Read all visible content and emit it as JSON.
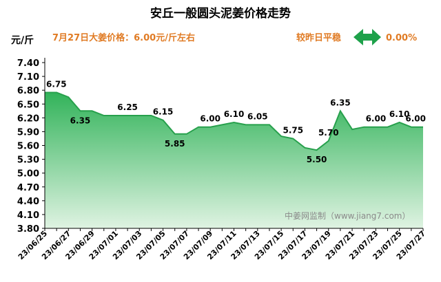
{
  "header": {
    "title": "安丘一般圆头泥姜价格走势",
    "unit": "元/斤",
    "price_text": "7月27日大姜价格：6.00元/斤左右",
    "compare_text": "较昨日平稳",
    "change_text": "0.00%"
  },
  "watermark": "中姜网监制（www.jiang7.com）",
  "colors": {
    "fill_top": "#32b35a",
    "fill_bottom": "#dff3e2",
    "line": "#27a04c",
    "accent_orange": "#e07b24",
    "arrow_green": "#1ea14a"
  },
  "chart_data": {
    "type": "area",
    "title": "安丘一般圆头泥姜价格走势",
    "ylabel": "元/斤",
    "ylim": [
      3.8,
      7.4
    ],
    "yticks": [
      "7.40",
      "7.10",
      "6.80",
      "6.50",
      "6.20",
      "5.90",
      "5.60",
      "5.30",
      "5.00",
      "4.70",
      "4.40",
      "4.10",
      "3.80"
    ],
    "x": [
      "23/06/25",
      "23/06/26",
      "23/06/27",
      "23/06/28",
      "23/06/29",
      "23/06/30",
      "23/07/01",
      "23/07/02",
      "23/07/03",
      "23/07/04",
      "23/07/05",
      "23/07/06",
      "23/07/07",
      "23/07/08",
      "23/07/09",
      "23/07/10",
      "23/07/11",
      "23/07/12",
      "23/07/13",
      "23/07/14",
      "23/07/15",
      "23/07/16",
      "23/07/17",
      "23/07/18",
      "23/07/19",
      "23/07/20",
      "23/07/21",
      "23/07/22",
      "23/07/23",
      "23/07/24",
      "23/07/25",
      "23/07/26",
      "23/07/27"
    ],
    "xticks": [
      "23/06/25",
      "23/06/27",
      "23/06/29",
      "23/07/01",
      "23/07/03",
      "23/07/05",
      "23/07/07",
      "23/07/09",
      "23/07/11",
      "23/07/13",
      "23/07/15",
      "23/07/17",
      "23/07/19",
      "23/07/21",
      "23/07/23",
      "23/07/25",
      "23/07/27"
    ],
    "values": [
      6.75,
      6.75,
      6.65,
      6.35,
      6.35,
      6.25,
      6.25,
      6.25,
      6.25,
      6.25,
      6.15,
      5.85,
      5.85,
      6.0,
      6.0,
      6.05,
      6.1,
      6.05,
      6.05,
      6.05,
      5.8,
      5.75,
      5.55,
      5.5,
      5.7,
      6.35,
      5.95,
      6.0,
      6.0,
      6.0,
      6.1,
      6.0,
      6.0
    ],
    "data_labels": [
      {
        "i": 0,
        "text": "6.75"
      },
      {
        "i": 3,
        "text": "6.35"
      },
      {
        "i": 7,
        "text": "6.25"
      },
      {
        "i": 10,
        "text": "6.15"
      },
      {
        "i": 11,
        "text": "5.85"
      },
      {
        "i": 14,
        "text": "6.00"
      },
      {
        "i": 16,
        "text": "6.10"
      },
      {
        "i": 18,
        "text": "6.05"
      },
      {
        "i": 21,
        "text": "5.75"
      },
      {
        "i": 23,
        "text": "5.50"
      },
      {
        "i": 24,
        "text": "5.70"
      },
      {
        "i": 25,
        "text": "6.35"
      },
      {
        "i": 28,
        "text": "6.00"
      },
      {
        "i": 30,
        "text": "6.10"
      },
      {
        "i": 32,
        "text": "6.00"
      }
    ],
    "grid": false,
    "legend": "none"
  }
}
